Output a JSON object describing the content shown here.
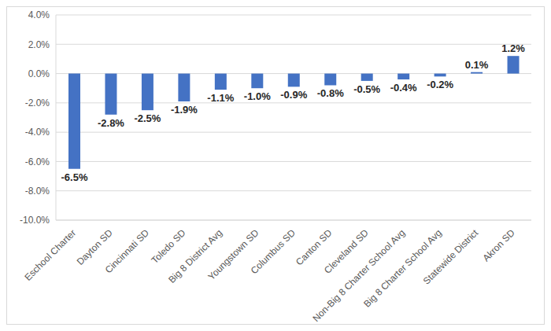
{
  "chart_data": {
    "type": "bar",
    "categories": [
      "Eschool Charter",
      "Dayton SD",
      "Cincinnati SD",
      "Toledo SD",
      "Big 8 District Avg",
      "Youngstown SD",
      "Columbus SD",
      "Canton SD",
      "Cleveland SD",
      "Non-Big 8 Charter School Avg",
      "Big 8 Charter School Avg",
      "Statewide District",
      "Akron SD"
    ],
    "values": [
      -6.5,
      -2.8,
      -2.5,
      -1.9,
      -1.1,
      -1.0,
      -0.9,
      -0.8,
      -0.5,
      -0.4,
      -0.2,
      0.1,
      1.2
    ],
    "value_labels": [
      "-6.5%",
      "-2.8%",
      "-2.5%",
      "-1.9%",
      "-1.1%",
      "-1.0%",
      "-0.9%",
      "-0.8%",
      "-0.5%",
      "-0.4%",
      "-0.2%",
      "0.1%",
      "1.2%"
    ],
    "color": "#4472c4",
    "ylim": [
      -10,
      4
    ],
    "yticks": [
      {
        "value": -10,
        "label": "-10.0%"
      },
      {
        "value": -8,
        "label": "-8.0%"
      },
      {
        "value": -6,
        "label": "-6.0%"
      },
      {
        "value": -4,
        "label": "-4.0%"
      },
      {
        "value": -2,
        "label": "-2.0%"
      },
      {
        "value": 0,
        "label": "0.0%"
      },
      {
        "value": 2,
        "label": "2.0%"
      },
      {
        "value": 4,
        "label": "4.0%"
      }
    ],
    "grid": true,
    "data_labels": true
  }
}
